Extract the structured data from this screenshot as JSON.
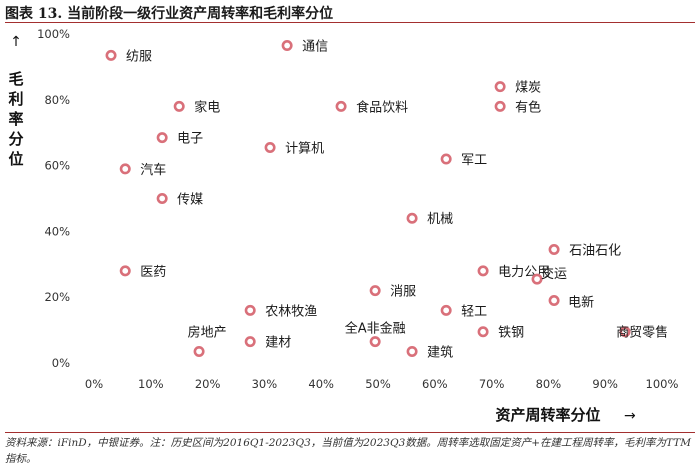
{
  "header": {
    "title": "图表 13. 当前阶段一级行业资产周转率和毛利率分位"
  },
  "footnote": "资料来源：iFinD，中银证券。注：历史区间为2016Q1-2023Q3，当前值为2023Q3数据。周转率选取固定资产+在建工程周转率，毛利率为TTM指标。",
  "arrows": {
    "up": "↑",
    "right": "→"
  },
  "colors": {
    "marker": "#d9707a",
    "rule": "#a32f2f"
  },
  "chart_data": {
    "type": "scatter",
    "title": "图表 13. 当前阶段一级行业资产周转率和毛利率分位",
    "xlabel": "资产周转率分位",
    "ylabel": "毛利率分位",
    "xlim": [
      0,
      100
    ],
    "ylim": [
      0,
      100
    ],
    "x_ticks": [
      "0%",
      "10%",
      "20%",
      "30%",
      "40%",
      "50%",
      "60%",
      "70%",
      "80%",
      "90%",
      "100%"
    ],
    "y_ticks": [
      "0%",
      "20%",
      "40%",
      "60%",
      "80%",
      "100%"
    ],
    "grid": false,
    "points": [
      {
        "name": "纺服",
        "x": 3,
        "y": 93.5
      },
      {
        "name": "通信",
        "x": 34,
        "y": 96.5
      },
      {
        "name": "煤炭",
        "x": 71.5,
        "y": 84
      },
      {
        "name": "有色",
        "x": 71.5,
        "y": 78
      },
      {
        "name": "家电",
        "x": 15,
        "y": 78
      },
      {
        "name": "食品饮料",
        "x": 43.5,
        "y": 78
      },
      {
        "name": "电子",
        "x": 12,
        "y": 68.5
      },
      {
        "name": "计算机",
        "x": 31,
        "y": 65.5
      },
      {
        "name": "军工",
        "x": 62,
        "y": 62
      },
      {
        "name": "汽车",
        "x": 5.5,
        "y": 59
      },
      {
        "name": "传媒",
        "x": 12,
        "y": 50
      },
      {
        "name": "机械",
        "x": 56,
        "y": 44
      },
      {
        "name": "石油石化",
        "x": 81,
        "y": 34.5
      },
      {
        "name": "医药",
        "x": 5.5,
        "y": 28
      },
      {
        "name": "电力公用",
        "x": 68.5,
        "y": 28
      },
      {
        "name": "交运",
        "x": 78,
        "y": 25.5
      },
      {
        "name": "消服",
        "x": 49.5,
        "y": 22
      },
      {
        "name": "电新",
        "x": 81,
        "y": 19
      },
      {
        "name": "农林牧渔",
        "x": 27.5,
        "y": 16
      },
      {
        "name": "轻工",
        "x": 62,
        "y": 16
      },
      {
        "name": "铁钢",
        "x": 68.5,
        "y": 9.5
      },
      {
        "name": "商贸零售",
        "x": 93.5,
        "y": 9.5
      },
      {
        "name": "全A非金融",
        "x": 49.5,
        "y": 6.5
      },
      {
        "name": "建材",
        "x": 27.5,
        "y": 6.5
      },
      {
        "name": "房地产",
        "x": 18.5,
        "y": 3.5
      },
      {
        "name": "建筑",
        "x": 56,
        "y": 3.5
      }
    ]
  }
}
